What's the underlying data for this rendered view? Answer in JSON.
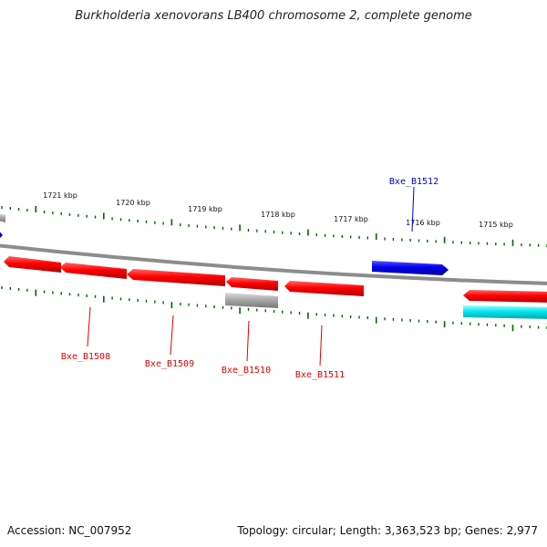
{
  "title": "Burkholderia xenovorans LB400 chromosome 2, complete genome",
  "footer": {
    "accession": "Accession: NC_007952",
    "stats": "Topology: circular; Length: 3,363,523 bp; Genes: 2,977"
  },
  "colors": {
    "forward_gene": "#0000ee",
    "reverse_gene": "#ee0000",
    "other_reverse": "#aaaaaa",
    "other_forward": "#00e5ee",
    "ticks": "#006400",
    "backbone": "#888888"
  },
  "ticks": [
    "1721 kbp",
    "1720 kbp",
    "1719 kbp",
    "1718 kbp",
    "1717 kbp",
    "1716 kbp",
    "1715 kbp"
  ],
  "genes": [
    {
      "label": "Bxe_B1508",
      "strand": "reverse"
    },
    {
      "label": "Bxe_B1509",
      "strand": "reverse"
    },
    {
      "label": "Bxe_B1510",
      "strand": "reverse"
    },
    {
      "label": "Bxe_B1511",
      "strand": "reverse"
    },
    {
      "label": "Bxe_B1512",
      "strand": "forward"
    }
  ]
}
